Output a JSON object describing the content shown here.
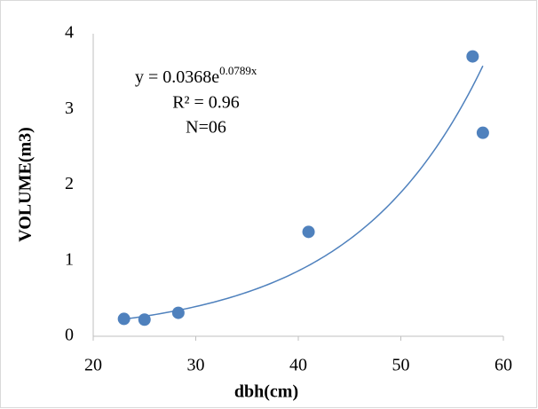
{
  "chart_data": {
    "type": "scatter",
    "x_label": "dbh(cm)",
    "y_label": "VOLUME(m3)",
    "series": [
      {
        "name": "Volume",
        "color": "#4f81bd",
        "x": [
          23,
          25,
          28.3,
          41,
          57,
          58
        ],
        "values": [
          0.23,
          0.22,
          0.31,
          1.38,
          3.7,
          2.69
        ]
      }
    ],
    "xlim": [
      20,
      60
    ],
    "xticks": [
      20,
      30,
      40,
      50,
      60
    ],
    "ylim": [
      0,
      4
    ],
    "yticks": [
      0,
      1,
      2,
      3,
      4
    ],
    "grid": false,
    "trendline": {
      "kind": "exponential",
      "a": 0.0368,
      "b": 0.0789,
      "color": "#4f81bd",
      "label": "y = 0.0368e",
      "exponent_label": "0.0789x",
      "r2_label": "R² = 0.96",
      "n_label": "N=06"
    }
  }
}
